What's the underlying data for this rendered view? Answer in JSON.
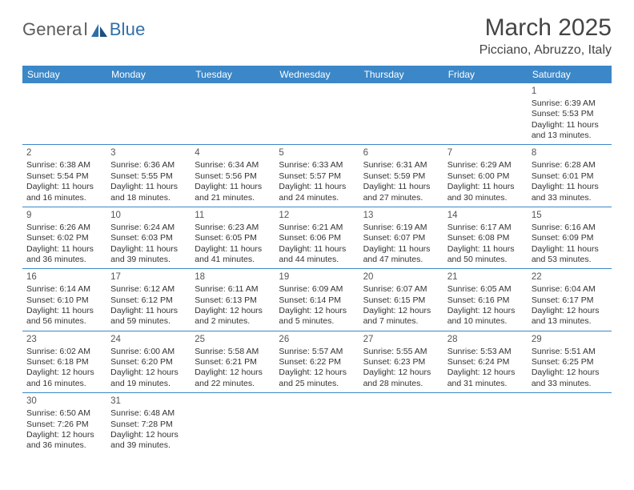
{
  "logo": {
    "text_general": "Genera",
    "text_l": "l",
    "text_blue": "Blue"
  },
  "header": {
    "title": "March 2025",
    "location": "Picciano, Abruzzo, Italy"
  },
  "colors": {
    "header_bg": "#3b87c8",
    "header_text": "#ffffff",
    "grid_line": "#3b87c8",
    "text": "#333333",
    "logo_gray": "#5c5c5c",
    "logo_blue": "#2f6fa9"
  },
  "weekday_labels": [
    "Sunday",
    "Monday",
    "Tuesday",
    "Wednesday",
    "Thursday",
    "Friday",
    "Saturday"
  ],
  "weeks": [
    [
      null,
      null,
      null,
      null,
      null,
      null,
      {
        "n": "1",
        "sunrise": "Sunrise: 6:39 AM",
        "sunset": "Sunset: 5:53 PM",
        "daylight": "Daylight: 11 hours and 13 minutes."
      }
    ],
    [
      {
        "n": "2",
        "sunrise": "Sunrise: 6:38 AM",
        "sunset": "Sunset: 5:54 PM",
        "daylight": "Daylight: 11 hours and 16 minutes."
      },
      {
        "n": "3",
        "sunrise": "Sunrise: 6:36 AM",
        "sunset": "Sunset: 5:55 PM",
        "daylight": "Daylight: 11 hours and 18 minutes."
      },
      {
        "n": "4",
        "sunrise": "Sunrise: 6:34 AM",
        "sunset": "Sunset: 5:56 PM",
        "daylight": "Daylight: 11 hours and 21 minutes."
      },
      {
        "n": "5",
        "sunrise": "Sunrise: 6:33 AM",
        "sunset": "Sunset: 5:57 PM",
        "daylight": "Daylight: 11 hours and 24 minutes."
      },
      {
        "n": "6",
        "sunrise": "Sunrise: 6:31 AM",
        "sunset": "Sunset: 5:59 PM",
        "daylight": "Daylight: 11 hours and 27 minutes."
      },
      {
        "n": "7",
        "sunrise": "Sunrise: 6:29 AM",
        "sunset": "Sunset: 6:00 PM",
        "daylight": "Daylight: 11 hours and 30 minutes."
      },
      {
        "n": "8",
        "sunrise": "Sunrise: 6:28 AM",
        "sunset": "Sunset: 6:01 PM",
        "daylight": "Daylight: 11 hours and 33 minutes."
      }
    ],
    [
      {
        "n": "9",
        "sunrise": "Sunrise: 6:26 AM",
        "sunset": "Sunset: 6:02 PM",
        "daylight": "Daylight: 11 hours and 36 minutes."
      },
      {
        "n": "10",
        "sunrise": "Sunrise: 6:24 AM",
        "sunset": "Sunset: 6:03 PM",
        "daylight": "Daylight: 11 hours and 39 minutes."
      },
      {
        "n": "11",
        "sunrise": "Sunrise: 6:23 AM",
        "sunset": "Sunset: 6:05 PM",
        "daylight": "Daylight: 11 hours and 41 minutes."
      },
      {
        "n": "12",
        "sunrise": "Sunrise: 6:21 AM",
        "sunset": "Sunset: 6:06 PM",
        "daylight": "Daylight: 11 hours and 44 minutes."
      },
      {
        "n": "13",
        "sunrise": "Sunrise: 6:19 AM",
        "sunset": "Sunset: 6:07 PM",
        "daylight": "Daylight: 11 hours and 47 minutes."
      },
      {
        "n": "14",
        "sunrise": "Sunrise: 6:17 AM",
        "sunset": "Sunset: 6:08 PM",
        "daylight": "Daylight: 11 hours and 50 minutes."
      },
      {
        "n": "15",
        "sunrise": "Sunrise: 6:16 AM",
        "sunset": "Sunset: 6:09 PM",
        "daylight": "Daylight: 11 hours and 53 minutes."
      }
    ],
    [
      {
        "n": "16",
        "sunrise": "Sunrise: 6:14 AM",
        "sunset": "Sunset: 6:10 PM",
        "daylight": "Daylight: 11 hours and 56 minutes."
      },
      {
        "n": "17",
        "sunrise": "Sunrise: 6:12 AM",
        "sunset": "Sunset: 6:12 PM",
        "daylight": "Daylight: 11 hours and 59 minutes."
      },
      {
        "n": "18",
        "sunrise": "Sunrise: 6:11 AM",
        "sunset": "Sunset: 6:13 PM",
        "daylight": "Daylight: 12 hours and 2 minutes."
      },
      {
        "n": "19",
        "sunrise": "Sunrise: 6:09 AM",
        "sunset": "Sunset: 6:14 PM",
        "daylight": "Daylight: 12 hours and 5 minutes."
      },
      {
        "n": "20",
        "sunrise": "Sunrise: 6:07 AM",
        "sunset": "Sunset: 6:15 PM",
        "daylight": "Daylight: 12 hours and 7 minutes."
      },
      {
        "n": "21",
        "sunrise": "Sunrise: 6:05 AM",
        "sunset": "Sunset: 6:16 PM",
        "daylight": "Daylight: 12 hours and 10 minutes."
      },
      {
        "n": "22",
        "sunrise": "Sunrise: 6:04 AM",
        "sunset": "Sunset: 6:17 PM",
        "daylight": "Daylight: 12 hours and 13 minutes."
      }
    ],
    [
      {
        "n": "23",
        "sunrise": "Sunrise: 6:02 AM",
        "sunset": "Sunset: 6:18 PM",
        "daylight": "Daylight: 12 hours and 16 minutes."
      },
      {
        "n": "24",
        "sunrise": "Sunrise: 6:00 AM",
        "sunset": "Sunset: 6:20 PM",
        "daylight": "Daylight: 12 hours and 19 minutes."
      },
      {
        "n": "25",
        "sunrise": "Sunrise: 5:58 AM",
        "sunset": "Sunset: 6:21 PM",
        "daylight": "Daylight: 12 hours and 22 minutes."
      },
      {
        "n": "26",
        "sunrise": "Sunrise: 5:57 AM",
        "sunset": "Sunset: 6:22 PM",
        "daylight": "Daylight: 12 hours and 25 minutes."
      },
      {
        "n": "27",
        "sunrise": "Sunrise: 5:55 AM",
        "sunset": "Sunset: 6:23 PM",
        "daylight": "Daylight: 12 hours and 28 minutes."
      },
      {
        "n": "28",
        "sunrise": "Sunrise: 5:53 AM",
        "sunset": "Sunset: 6:24 PM",
        "daylight": "Daylight: 12 hours and 31 minutes."
      },
      {
        "n": "29",
        "sunrise": "Sunrise: 5:51 AM",
        "sunset": "Sunset: 6:25 PM",
        "daylight": "Daylight: 12 hours and 33 minutes."
      }
    ],
    [
      {
        "n": "30",
        "sunrise": "Sunrise: 6:50 AM",
        "sunset": "Sunset: 7:26 PM",
        "daylight": "Daylight: 12 hours and 36 minutes."
      },
      {
        "n": "31",
        "sunrise": "Sunrise: 6:48 AM",
        "sunset": "Sunset: 7:28 PM",
        "daylight": "Daylight: 12 hours and 39 minutes."
      },
      null,
      null,
      null,
      null,
      null
    ]
  ]
}
